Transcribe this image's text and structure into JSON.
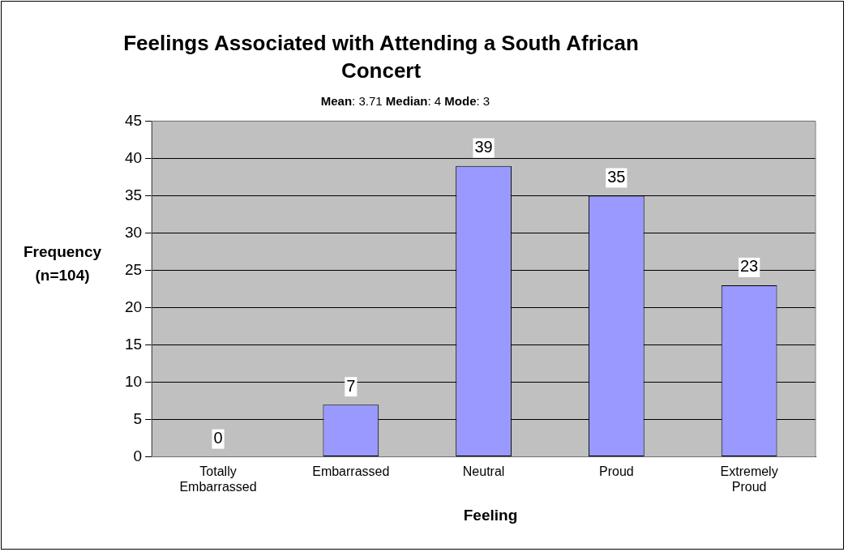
{
  "chart_data": {
    "type": "bar",
    "title": "Feelings Associated with Attending a South African Concert",
    "subtitle": "Mean: 3.71  Median: 4  Mode:  3",
    "xlabel": "Feeling",
    "ylabel": "Frequency (n=104)",
    "categories": [
      "Totally Embarrassed",
      "Embarrassed",
      "Neutral",
      "Proud",
      "Extremely Proud"
    ],
    "values": [
      0,
      7,
      39,
      35,
      23
    ],
    "color": "#9999ff",
    "ylim": [
      0,
      45
    ],
    "yticks": [
      0,
      5,
      10,
      15,
      20,
      25,
      30,
      35,
      40,
      45
    ],
    "grid": "y",
    "data_labels": true,
    "legend": false
  }
}
